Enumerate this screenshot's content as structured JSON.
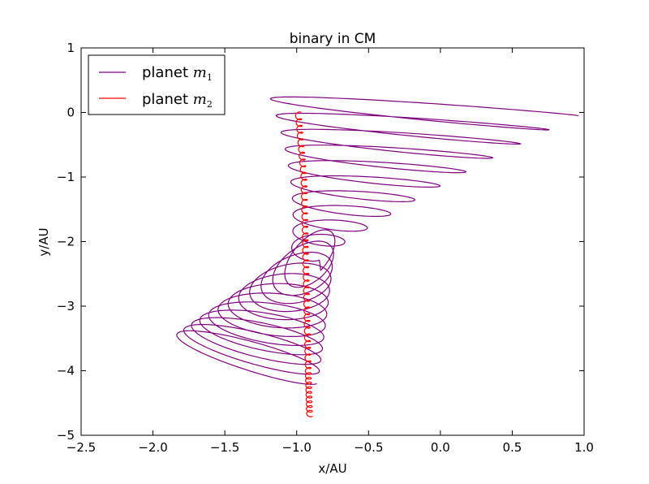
{
  "chart_data": {
    "type": "line",
    "title": "binary in CM",
    "xlabel": "x/AU",
    "ylabel": "y/AU",
    "xlim": [
      -2.5,
      1.0
    ],
    "ylim": [
      -5,
      1
    ],
    "xticks": [
      -2.5,
      -2.0,
      -1.5,
      -1.0,
      -0.5,
      0.0,
      0.5,
      1.0
    ],
    "xtick_labels": [
      "−2.5",
      "−2.0",
      "−1.5",
      "−1.0",
      "−0.5",
      "0.0",
      "0.5",
      "1.0"
    ],
    "yticks": [
      1,
      0,
      -1,
      -2,
      -3,
      -4,
      -5
    ],
    "ytick_labels": [
      "1",
      "0",
      "−1",
      "−2",
      "−3",
      "−4",
      "−5"
    ],
    "grid": false,
    "legend_position": "top-left",
    "series": [
      {
        "name": "planet",
        "subscript": "1",
        "color": "#800080",
        "x": [
          1.0,
          0.32,
          -1.0,
          0.68,
          -0.98,
          0.58,
          -0.97,
          0.42,
          -0.96,
          0.12,
          -0.95,
          -0.25,
          -0.94,
          -0.65,
          -0.93,
          -0.95,
          -1.05,
          -2.0,
          -1.25,
          -0.93,
          -0.92
        ],
        "y": [
          0.0,
          0.08,
          -0.1,
          -0.45,
          -0.72,
          -0.85,
          -1.05,
          -1.2,
          -1.3,
          -1.5,
          -1.6,
          -1.75,
          -1.9,
          -2.05,
          -2.2,
          -3.3,
          -3.8,
          -4.3,
          -4.6,
          -4.55,
          -4.65
        ]
      },
      {
        "name": "planet",
        "subscript": "2",
        "color": "#ff0000",
        "x": [
          -0.99,
          -0.95,
          -0.94,
          -0.93,
          -0.92,
          -0.91
        ],
        "y": [
          0.0,
          -1.0,
          -2.0,
          -3.0,
          -4.0,
          -4.7
        ]
      }
    ]
  }
}
